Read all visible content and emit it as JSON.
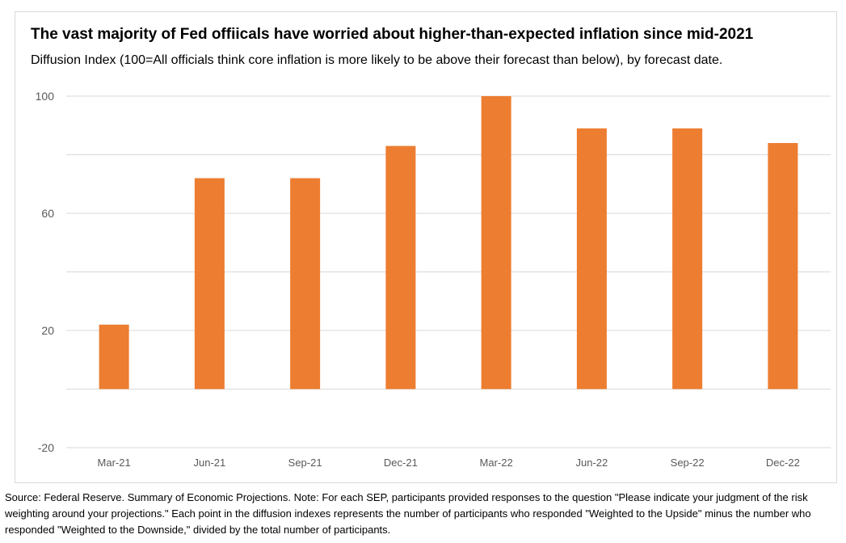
{
  "chart_data": {
    "type": "bar",
    "title": "The vast majority of Fed offiicals have worried about higher-than-expected inflation since mid-2021",
    "subtitle": "Diffusion Index (100=All officials think core inflation is more likely to be above their forecast than below), by forecast date.",
    "categories": [
      "Mar-21",
      "Jun-21",
      "Sep-21",
      "Dec-21",
      "Mar-22",
      "Jun-22",
      "Sep-22",
      "Dec-22"
    ],
    "values": [
      22,
      72,
      72,
      83,
      100,
      89,
      89,
      84
    ],
    "ylim": [
      -20,
      100
    ],
    "yticks": [
      -20,
      20,
      60,
      100
    ],
    "grid": true,
    "colors": {
      "bar": "#ed7d31",
      "grid": "#d9d9d9",
      "tick_text": "#595959"
    }
  },
  "source_note": "Source: Federal Reserve. Summary of Economic Projections. Note: For each SEP, participants provided responses to the question \"Please indicate your judgment of the risk weighting around your projections.\" Each point in the diffusion indexes represents the number of participants who responded \"Weighted to the Upside\" minus the number who responded \"Weighted to the Downside,\" divided by the total number of participants."
}
